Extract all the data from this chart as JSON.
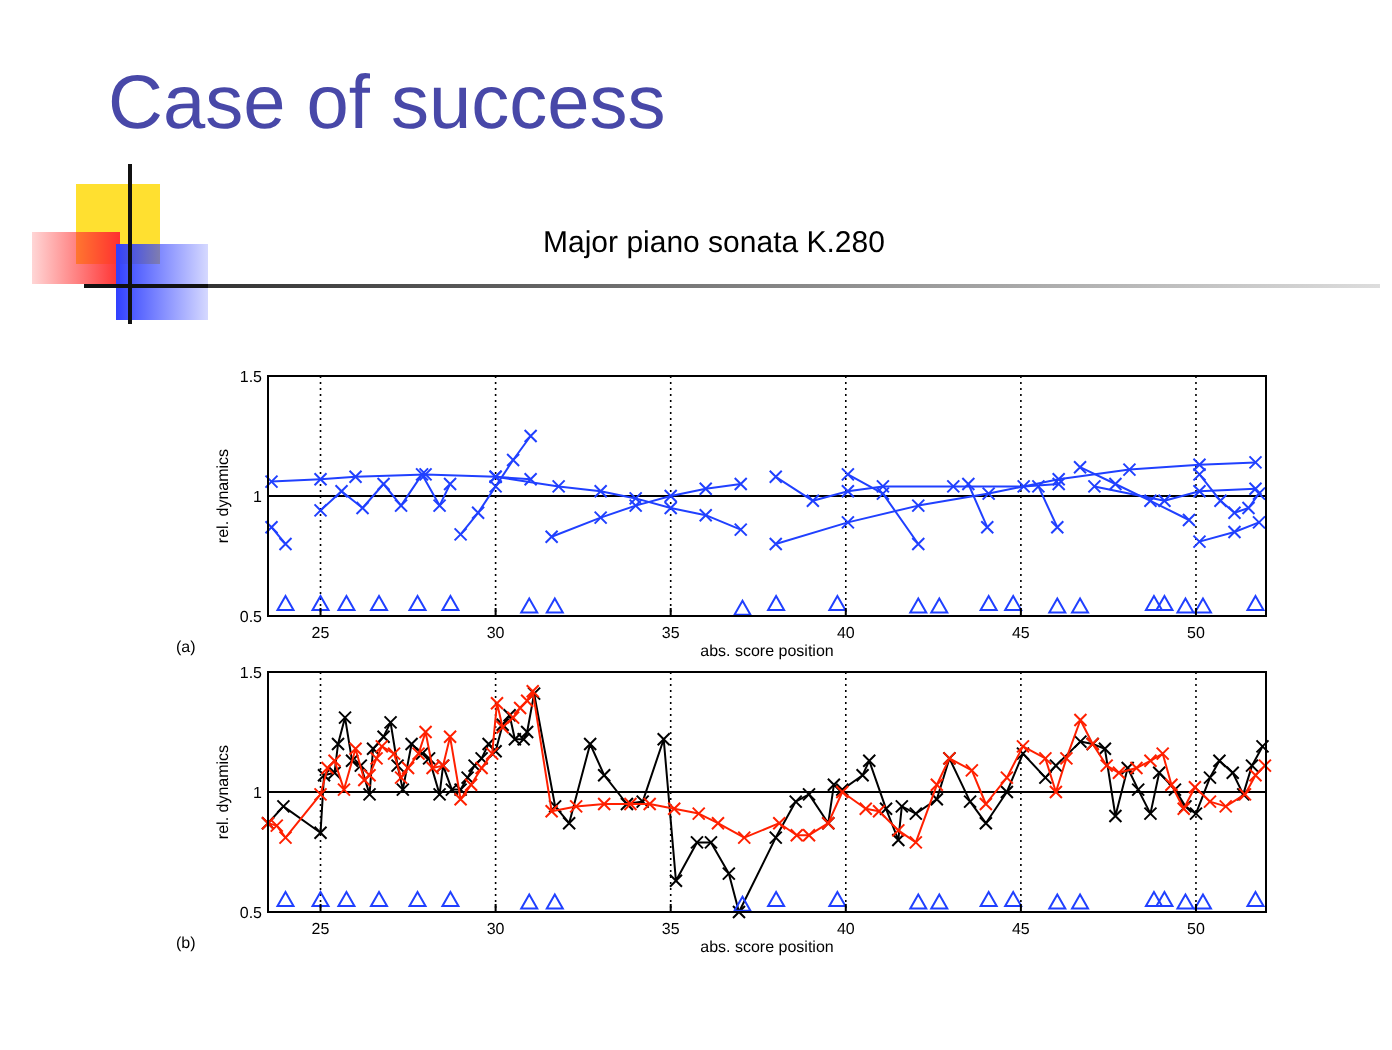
{
  "chart_data": [
    {
      "type": "line",
      "title": "Case of success",
      "subtitle": "Major piano sonata K.280",
      "xlabel": "abs. score position",
      "ylabel": "rel. dynamics",
      "annotations": [
        "(a)"
      ],
      "xlim": [
        23.5,
        52
      ],
      "ylim": [
        0.5,
        1.5
      ],
      "xticks": [
        25,
        30,
        35,
        40,
        45,
        50
      ],
      "yticks": [
        0.5,
        1,
        1.5
      ],
      "grid": true,
      "ref_lines": [
        {
          "axis": "y",
          "value": 1,
          "color": "#000000",
          "line_style": "solid"
        }
      ],
      "marker": "cross",
      "line_style": "solid",
      "series": [
        {
          "color": "#2040ff",
          "x": [
            23.6,
            25,
            26,
            28,
            30,
            31
          ],
          "values": [
            1.06,
            1.07,
            1.08,
            1.09,
            1.08,
            1.07
          ]
        },
        {
          "color": "#2040ff",
          "x": [
            29.0,
            29.5,
            30,
            30.5,
            31.0
          ],
          "values": [
            0.84,
            0.93,
            1.04,
            1.15,
            1.25
          ]
        },
        {
          "color": "#2040ff",
          "x": [
            30,
            31.8,
            33,
            34,
            35,
            36,
            37
          ],
          "values": [
            1.08,
            1.04,
            1.02,
            0.99,
            0.95,
            0.92,
            0.86
          ]
        },
        {
          "color": "#2040ff",
          "x": [
            31.6,
            33,
            34,
            35,
            36,
            37
          ],
          "values": [
            0.83,
            0.91,
            0.96,
            1.0,
            1.03,
            1.05
          ]
        },
        {
          "color": "#2040ff",
          "x": [
            25,
            25.6,
            26.2,
            26.8,
            27.3,
            27.9,
            28.4,
            28.7
          ],
          "values": [
            0.94,
            1.02,
            0.95,
            1.05,
            0.96,
            1.09,
            0.96,
            1.05
          ]
        },
        {
          "color": "#2040ff",
          "x": [
            23.6,
            24.0
          ],
          "values": [
            0.87,
            0.8
          ]
        },
        {
          "color": "#2040ff",
          "x": [
            40.06,
            41.06,
            42.07
          ],
          "values": [
            1.09,
            1.01,
            0.8
          ]
        },
        {
          "color": "#2040ff",
          "x": [
            38.0,
            40.06,
            42.07,
            44.08,
            46.08,
            48.1,
            50.1,
            51.7
          ],
          "values": [
            0.8,
            0.89,
            0.96,
            1.01,
            1.07,
            1.11,
            1.13,
            1.14
          ]
        },
        {
          "color": "#2040ff",
          "x": [
            38,
            39.06,
            40.06,
            41.06,
            43.07,
            45.08,
            46.08
          ],
          "values": [
            1.08,
            0.98,
            1.02,
            1.04,
            1.04,
            1.04,
            1.05
          ]
        },
        {
          "color": "#2040ff",
          "x": [
            43.5,
            44.04
          ],
          "values": [
            1.05,
            0.87
          ]
        },
        {
          "color": "#2040ff",
          "x": [
            45.5,
            46.04
          ],
          "values": [
            1.04,
            0.87
          ]
        },
        {
          "color": "#2040ff",
          "x": [
            46.69,
            47.7,
            48.7,
            49.8
          ],
          "values": [
            1.12,
            1.05,
            0.98,
            0.9
          ]
        },
        {
          "color": "#2040ff",
          "x": [
            50.1,
            50.7,
            51.1,
            51.5,
            51.8
          ],
          "values": [
            1.09,
            0.98,
            0.93,
            0.95,
            1.01
          ]
        },
        {
          "color": "#2040ff",
          "x": [
            50.1,
            51.1,
            51.8
          ],
          "values": [
            0.81,
            0.85,
            0.89
          ]
        },
        {
          "color": "#2040ff",
          "x": [
            47.1,
            49.1,
            50.1,
            51.7
          ],
          "values": [
            1.04,
            0.98,
            1.02,
            1.03
          ]
        },
        {
          "type": "scatter",
          "marker": "triangle",
          "color": "#2040ff",
          "x": [
            24.0,
            25.0,
            25.74,
            26.67,
            27.77,
            28.71,
            30.96,
            31.69,
            37.05,
            38.01,
            39.76,
            42.07,
            42.67,
            44.08,
            44.78,
            46.04,
            46.69,
            48.8,
            49.1,
            49.7,
            50.2,
            51.7
          ],
          "values": [
            0.55,
            0.55,
            0.55,
            0.55,
            0.55,
            0.55,
            0.54,
            0.54,
            0.53,
            0.55,
            0.55,
            0.54,
            0.54,
            0.55,
            0.55,
            0.54,
            0.54,
            0.55,
            0.55,
            0.54,
            0.54,
            0.55
          ]
        }
      ]
    },
    {
      "type": "line",
      "xlabel": "abs. score position",
      "ylabel": "rel. dynamics",
      "annotations": [
        "(b)"
      ],
      "xlim": [
        23.5,
        52
      ],
      "ylim": [
        0.5,
        1.5
      ],
      "xticks": [
        25,
        30,
        35,
        40,
        45,
        50
      ],
      "yticks": [
        0.5,
        1,
        1.5
      ],
      "grid": true,
      "ref_lines": [
        {
          "axis": "y",
          "value": 1,
          "color": "#000000",
          "line_style": "solid"
        }
      ],
      "marker": "cross",
      "line_style": "solid",
      "series": [
        {
          "color": "#000000",
          "x": [
            23.5,
            23.94,
            25,
            25.1,
            25.4,
            25.5,
            25.7,
            25.9,
            26.15,
            26.4,
            26.5,
            26.8,
            27.0,
            27.2,
            27.35,
            27.6,
            27.9,
            28.1,
            28.4,
            28.5,
            28.75,
            29.0,
            29.2,
            29.4,
            29.6,
            29.8,
            30,
            30.2,
            30.4,
            30.55,
            30.8,
            30.9,
            31.1,
            31.7,
            32.1,
            32.7,
            33.1,
            33.75,
            34.2,
            34.8,
            35.15,
            35.75,
            36.15,
            36.66,
            36.95,
            38.0,
            38.57,
            38.95,
            39.5,
            39.66,
            39.9,
            40.48,
            40.67,
            41.15,
            41.5,
            41.6,
            42.0,
            42.6,
            42.96,
            43.55,
            44.0,
            44.6,
            45.06,
            45.7,
            46.0,
            46.7,
            47.05,
            47.4,
            47.7,
            48.05,
            48.35,
            48.7,
            48.95,
            49.4,
            49.7,
            50.0,
            50.4,
            50.67,
            51.05,
            51.35,
            51.6,
            51.9
          ],
          "values": [
            0.87,
            0.94,
            0.83,
            1.07,
            1.08,
            1.2,
            1.31,
            1.13,
            1.11,
            0.99,
            1.18,
            1.23,
            1.29,
            1.11,
            1.01,
            1.2,
            1.16,
            1.14,
            0.99,
            1.11,
            1.01,
            1.01,
            1.06,
            1.11,
            1.14,
            1.2,
            1.17,
            1.28,
            1.32,
            1.22,
            1.22,
            1.25,
            1.41,
            0.94,
            0.87,
            1.2,
            1.07,
            0.95,
            0.96,
            1.22,
            0.63,
            0.79,
            0.79,
            0.66,
            0.5,
            0.81,
            0.96,
            0.99,
            0.87,
            1.03,
            1.01,
            1.07,
            1.13,
            0.93,
            0.8,
            0.94,
            0.91,
            0.97,
            1.14,
            0.96,
            0.87,
            1.0,
            1.16,
            1.06,
            1.11,
            1.21,
            1.2,
            1.18,
            0.9,
            1.1,
            1.01,
            0.91,
            1.08,
            1.01,
            0.94,
            0.91,
            1.06,
            1.13,
            1.08,
            0.99,
            1.11,
            1.19
          ]
        },
        {
          "color": "#ff2000",
          "x": [
            23.5,
            23.75,
            24.0,
            25,
            25.2,
            25.4,
            25.67,
            26.0,
            26.25,
            26.4,
            26.6,
            26.75,
            27.1,
            27.3,
            27.5,
            27.8,
            28.0,
            28.2,
            28.5,
            28.7,
            29.0,
            29.3,
            29.6,
            29.9,
            30.04,
            30.2,
            30.5,
            30.7,
            30.9,
            31.06,
            31.6,
            32.3,
            33.1,
            33.85,
            34.4,
            35.1,
            35.8,
            36.35,
            37.1,
            38.1,
            38.6,
            38.95,
            39.5,
            39.9,
            40.57,
            40.95,
            41.5,
            42.0,
            42.6,
            42.96,
            43.6,
            44.0,
            44.6,
            45.06,
            45.7,
            46.0,
            46.3,
            46.7,
            47.05,
            47.45,
            47.8,
            48.3,
            48.7,
            49.05,
            49.3,
            49.65,
            49.97,
            50.4,
            50.85,
            51.4,
            51.7,
            51.97
          ],
          "values": [
            0.87,
            0.86,
            0.81,
            0.99,
            1.1,
            1.13,
            1.01,
            1.18,
            1.05,
            1.07,
            1.14,
            1.19,
            1.16,
            1.06,
            1.1,
            1.16,
            1.25,
            1.1,
            1.11,
            1.23,
            0.97,
            1.03,
            1.1,
            1.16,
            1.37,
            1.27,
            1.31,
            1.35,
            1.38,
            1.42,
            0.92,
            0.94,
            0.95,
            0.95,
            0.95,
            0.93,
            0.91,
            0.87,
            0.81,
            0.87,
            0.82,
            0.82,
            0.87,
            1.0,
            0.93,
            0.92,
            0.84,
            0.79,
            1.03,
            1.14,
            1.09,
            0.95,
            1.06,
            1.19,
            1.14,
            1.0,
            1.14,
            1.3,
            1.2,
            1.11,
            1.08,
            1.1,
            1.13,
            1.16,
            1.03,
            0.93,
            1.02,
            0.96,
            0.94,
            0.99,
            1.07,
            1.11
          ]
        },
        {
          "type": "scatter",
          "marker": "triangle",
          "color": "#2040ff",
          "x": [
            24.0,
            25.0,
            25.74,
            26.67,
            27.77,
            28.71,
            30.96,
            31.69,
            37.05,
            38.01,
            39.76,
            42.07,
            42.67,
            44.08,
            44.78,
            46.04,
            46.69,
            48.8,
            49.1,
            49.7,
            50.2,
            51.7
          ],
          "values": [
            0.55,
            0.55,
            0.55,
            0.55,
            0.55,
            0.55,
            0.54,
            0.54,
            0.53,
            0.55,
            0.55,
            0.54,
            0.54,
            0.55,
            0.55,
            0.54,
            0.54,
            0.55,
            0.55,
            0.54,
            0.54,
            0.55
          ]
        }
      ]
    }
  ]
}
